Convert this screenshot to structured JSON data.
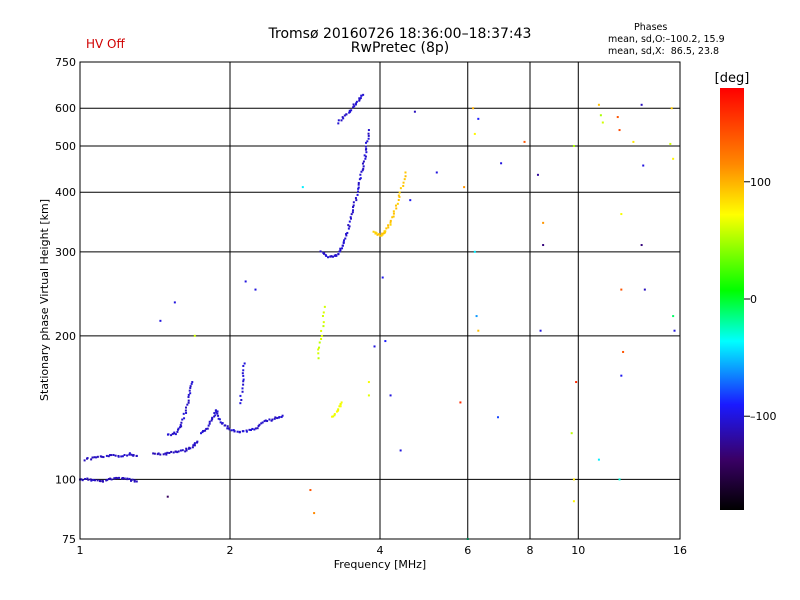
{
  "title_line1": "Tromsø 20160726 18:36:00–18:37:43",
  "title_line2": "RwPretec (8p)",
  "status": "HV Off",
  "stats": {
    "heading": "Phases",
    "line1": "mean, sd,O:–100.2, 15.9",
    "line2": "mean, sd,X:  86.5, 23.8"
  },
  "colorbar": {
    "label": "[deg]",
    "ticks": [
      "100",
      "0",
      "–100"
    ],
    "tick_values": [
      100,
      0,
      -100
    ],
    "range": [
      -180,
      180
    ]
  },
  "chart_data": {
    "type": "scatter",
    "title": "Tromsø 20160726 18:36:00–18:37:43",
    "subtitle": "RwPretec (8p)",
    "xlabel": "Frequency [MHz]",
    "ylabel": "Stationary phase Virtual Height [km]",
    "xscale": "log",
    "yscale": "log",
    "xlim": [
      1,
      16
    ],
    "ylim": [
      75,
      750
    ],
    "xticks": [
      1,
      2,
      4,
      6,
      8,
      10,
      16
    ],
    "xtick_labels": [
      "1",
      "2",
      "4",
      "6",
      "8",
      "10",
      "16"
    ],
    "yticks": [
      75,
      100,
      200,
      300,
      400,
      500,
      600,
      750
    ],
    "ytick_labels": [
      "75",
      "100",
      "200",
      "300",
      "400",
      "500",
      "600",
      "750"
    ],
    "grid": true,
    "color_encoding": "phase [deg]",
    "curves": [
      {
        "points": [
          [
            1.0,
            100
          ],
          [
            1.05,
            100
          ],
          [
            1.1,
            99
          ],
          [
            1.15,
            100
          ],
          [
            1.2,
            101
          ],
          [
            1.25,
            100
          ],
          [
            1.3,
            99
          ]
        ],
        "phase": -110
      },
      {
        "points": [
          [
            1.02,
            110
          ],
          [
            1.08,
            111
          ],
          [
            1.14,
            112
          ],
          [
            1.2,
            112
          ],
          [
            1.26,
            113
          ],
          [
            1.3,
            112
          ]
        ],
        "phase": -108
      },
      {
        "points": [
          [
            1.4,
            113
          ],
          [
            1.48,
            113
          ],
          [
            1.55,
            114
          ],
          [
            1.62,
            115
          ],
          [
            1.68,
            117
          ],
          [
            1.72,
            120
          ]
        ],
        "phase": -108
      },
      {
        "points": [
          [
            1.5,
            124
          ],
          [
            1.56,
            125
          ],
          [
            1.6,
            130
          ],
          [
            1.63,
            140
          ],
          [
            1.66,
            150
          ],
          [
            1.68,
            160
          ]
        ],
        "phase": -105
      },
      {
        "points": [
          [
            1.75,
            125
          ],
          [
            1.8,
            128
          ],
          [
            1.85,
            135
          ],
          [
            1.88,
            140
          ],
          [
            1.92,
            132
          ],
          [
            1.98,
            128
          ],
          [
            2.05,
            126
          ],
          [
            2.15,
            126
          ],
          [
            2.25,
            128
          ],
          [
            2.35,
            132
          ],
          [
            2.45,
            134
          ],
          [
            2.55,
            136
          ]
        ],
        "phase": -105
      },
      {
        "points": [
          [
            2.1,
            145
          ],
          [
            2.12,
            160
          ],
          [
            2.14,
            175
          ]
        ],
        "phase": -102
      },
      {
        "points": [
          [
            3.05,
            300
          ],
          [
            3.15,
            292
          ],
          [
            3.25,
            294
          ],
          [
            3.32,
            300
          ],
          [
            3.38,
            312
          ],
          [
            3.44,
            330
          ],
          [
            3.5,
            355
          ],
          [
            3.56,
            380
          ],
          [
            3.62,
            410
          ],
          [
            3.68,
            440
          ],
          [
            3.73,
            470
          ],
          [
            3.76,
            500
          ],
          [
            3.8,
            540
          ]
        ],
        "phase": -105
      },
      {
        "points": [
          [
            3.3,
            560
          ],
          [
            3.42,
            580
          ],
          [
            3.52,
            600
          ],
          [
            3.62,
            625
          ],
          [
            3.7,
            640
          ]
        ],
        "phase": -105
      },
      {
        "points": [
          [
            3.0,
            180
          ],
          [
            3.05,
            200
          ],
          [
            3.1,
            230
          ]
        ],
        "phase": 60
      },
      {
        "points": [
          [
            3.2,
            135
          ],
          [
            3.3,
            140
          ],
          [
            3.35,
            145
          ]
        ],
        "phase": 70
      },
      {
        "points": [
          [
            3.9,
            330
          ],
          [
            4.0,
            325
          ],
          [
            4.1,
            330
          ],
          [
            4.2,
            345
          ],
          [
            4.3,
            370
          ],
          [
            4.4,
            400
          ],
          [
            4.5,
            440
          ]
        ],
        "phase": 92
      }
    ],
    "points": [
      [
        1.5,
        92,
        -140
      ],
      [
        1.45,
        215,
        -100
      ],
      [
        1.55,
        235,
        -100
      ],
      [
        1.7,
        200,
        60
      ],
      [
        2.15,
        260,
        -100
      ],
      [
        2.25,
        250,
        -100
      ],
      [
        2.8,
        410,
        -40
      ],
      [
        2.9,
        95,
        140
      ],
      [
        2.95,
        85,
        115
      ],
      [
        3.8,
        150,
        65
      ],
      [
        3.8,
        160,
        70
      ],
      [
        3.9,
        190,
        -100
      ],
      [
        4.1,
        195,
        -90
      ],
      [
        4.05,
        265,
        -95
      ],
      [
        4.2,
        150,
        -100
      ],
      [
        4.4,
        115,
        -100
      ],
      [
        4.7,
        590,
        -110
      ],
      [
        4.6,
        385,
        -95
      ],
      [
        5.2,
        440,
        -100
      ],
      [
        5.8,
        145,
        160
      ],
      [
        5.9,
        410,
        110
      ],
      [
        6.0,
        75,
        -20
      ],
      [
        6.15,
        600,
        100
      ],
      [
        6.2,
        530,
        75
      ],
      [
        6.3,
        570,
        -90
      ],
      [
        6.2,
        300,
        -40
      ],
      [
        6.25,
        220,
        -60
      ],
      [
        6.3,
        205,
        95
      ],
      [
        6.9,
        135,
        -80
      ],
      [
        7.0,
        460,
        -100
      ],
      [
        7.8,
        510,
        140
      ],
      [
        8.3,
        435,
        -120
      ],
      [
        8.5,
        345,
        110
      ],
      [
        8.5,
        310,
        -130
      ],
      [
        8.4,
        205,
        -100
      ],
      [
        9.8,
        90,
        75
      ],
      [
        9.8,
        100,
        80
      ],
      [
        9.7,
        125,
        55
      ],
      [
        9.9,
        160,
        160
      ],
      [
        9.8,
        500,
        50
      ],
      [
        11.0,
        610,
        95
      ],
      [
        11.1,
        580,
        50
      ],
      [
        11.2,
        560,
        60
      ],
      [
        11.0,
        110,
        -40
      ],
      [
        12.0,
        575,
        140
      ],
      [
        12.1,
        540,
        145
      ],
      [
        12.2,
        360,
        70
      ],
      [
        12.2,
        250,
        140
      ],
      [
        12.3,
        185,
        140
      ],
      [
        12.2,
        165,
        -95
      ],
      [
        12.1,
        100,
        -30
      ],
      [
        12.9,
        510,
        80
      ],
      [
        13.4,
        610,
        -110
      ],
      [
        13.5,
        455,
        -100
      ],
      [
        13.4,
        310,
        -130
      ],
      [
        13.6,
        250,
        -110
      ],
      [
        15.3,
        505,
        60
      ],
      [
        15.5,
        470,
        75
      ],
      [
        15.4,
        600,
        90
      ],
      [
        15.5,
        220,
        -10
      ],
      [
        15.6,
        205,
        -100
      ]
    ]
  }
}
